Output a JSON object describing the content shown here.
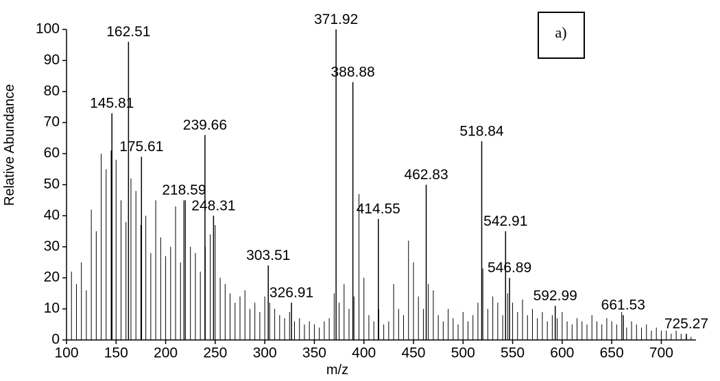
{
  "chart_data": {
    "type": "spectrum",
    "x_label": "m/z",
    "y_label": "Relative Abundance",
    "panel_label": "a)",
    "xlim": [
      100,
      735
    ],
    "xticks": [
      100,
      150,
      200,
      250,
      300,
      350,
      400,
      450,
      500,
      550,
      600,
      650,
      700
    ],
    "ylim": [
      0,
      100
    ],
    "yticks": [
      0,
      10,
      20,
      30,
      40,
      50,
      60,
      70,
      80,
      90,
      100
    ],
    "color": "#000000",
    "x": [
      100,
      105,
      110,
      115,
      120,
      125,
      130,
      135,
      140,
      145,
      150,
      155,
      160,
      165,
      170,
      175,
      180,
      185,
      190,
      195,
      200,
      205,
      210,
      215,
      220,
      225,
      230,
      235,
      240,
      245,
      250,
      255,
      260,
      265,
      270,
      275,
      280,
      285,
      290,
      295,
      300,
      305,
      310,
      315,
      320,
      325,
      330,
      335,
      340,
      345,
      350,
      355,
      360,
      365,
      370,
      375,
      380,
      385,
      390,
      395,
      400,
      405,
      410,
      415,
      420,
      425,
      430,
      435,
      440,
      445,
      450,
      455,
      460,
      465,
      470,
      475,
      480,
      485,
      490,
      495,
      500,
      505,
      510,
      515,
      520,
      525,
      530,
      535,
      540,
      545,
      550,
      555,
      560,
      565,
      570,
      575,
      580,
      585,
      590,
      595,
      600,
      605,
      610,
      615,
      620,
      625,
      630,
      635,
      640,
      645,
      650,
      655,
      660,
      665,
      670,
      675,
      680,
      685,
      690,
      695,
      700,
      705,
      710,
      715,
      720,
      725,
      730
    ],
    "values": [
      37,
      22,
      18,
      25,
      16,
      42,
      35,
      60,
      55,
      61,
      58,
      45,
      38,
      52,
      48,
      37,
      40,
      28,
      45,
      33,
      27,
      30,
      43,
      25,
      45,
      30,
      28,
      22,
      30,
      34,
      37,
      20,
      18,
      15,
      12,
      14,
      16,
      10,
      12,
      9,
      14,
      12,
      10,
      8,
      7,
      9,
      6,
      7,
      5,
      6,
      5,
      4,
      6,
      7,
      15,
      12,
      18,
      10,
      14,
      47,
      20,
      8,
      6,
      10,
      5,
      6,
      18,
      10,
      8,
      32,
      25,
      14,
      10,
      18,
      16,
      8,
      6,
      10,
      7,
      5,
      9,
      6,
      8,
      12,
      23,
      10,
      14,
      12,
      8,
      15,
      12,
      9,
      13,
      8,
      10,
      7,
      9,
      6,
      8,
      7,
      9,
      6,
      5,
      7,
      6,
      5,
      8,
      6,
      5,
      7,
      6,
      5,
      9,
      4,
      6,
      5,
      4,
      5,
      3,
      4,
      3,
      3,
      2,
      3,
      2,
      1,
      1
    ],
    "labeled_peaks": {
      "x": [
        145.81,
        162.51,
        175.61,
        218.59,
        239.66,
        248.31,
        303.51,
        326.91,
        371.92,
        388.88,
        414.55,
        462.83,
        518.84,
        542.91,
        546.89,
        592.99,
        661.53,
        725.27
      ],
      "values": [
        73,
        96,
        59,
        45,
        66,
        40,
        24,
        12,
        100,
        83,
        39,
        50,
        64,
        35,
        20,
        11,
        8,
        2
      ]
    }
  }
}
